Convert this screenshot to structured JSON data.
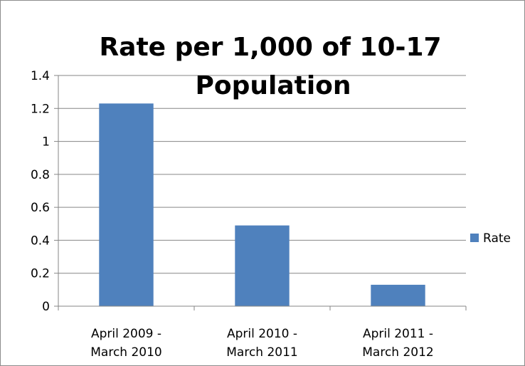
{
  "chart_data": {
    "type": "bar",
    "title_lines": [
      "Rate per 1,000 of 10-17",
      "Population"
    ],
    "categories": [
      [
        "April 2009 -",
        "March 2010"
      ],
      [
        "April 2010 -",
        "March 2011"
      ],
      [
        "April 2011 -",
        "March 2012"
      ]
    ],
    "series": [
      {
        "name": "Rate",
        "values": [
          1.23,
          0.49,
          0.13
        ],
        "color": "#4f81bd"
      }
    ],
    "ylim": [
      0,
      1.4
    ],
    "yticks": [
      "0",
      "0.2",
      "0.4",
      "0.6",
      "0.8",
      "1",
      "1.2",
      "1.4"
    ],
    "grid": true,
    "legend_position": "right"
  }
}
